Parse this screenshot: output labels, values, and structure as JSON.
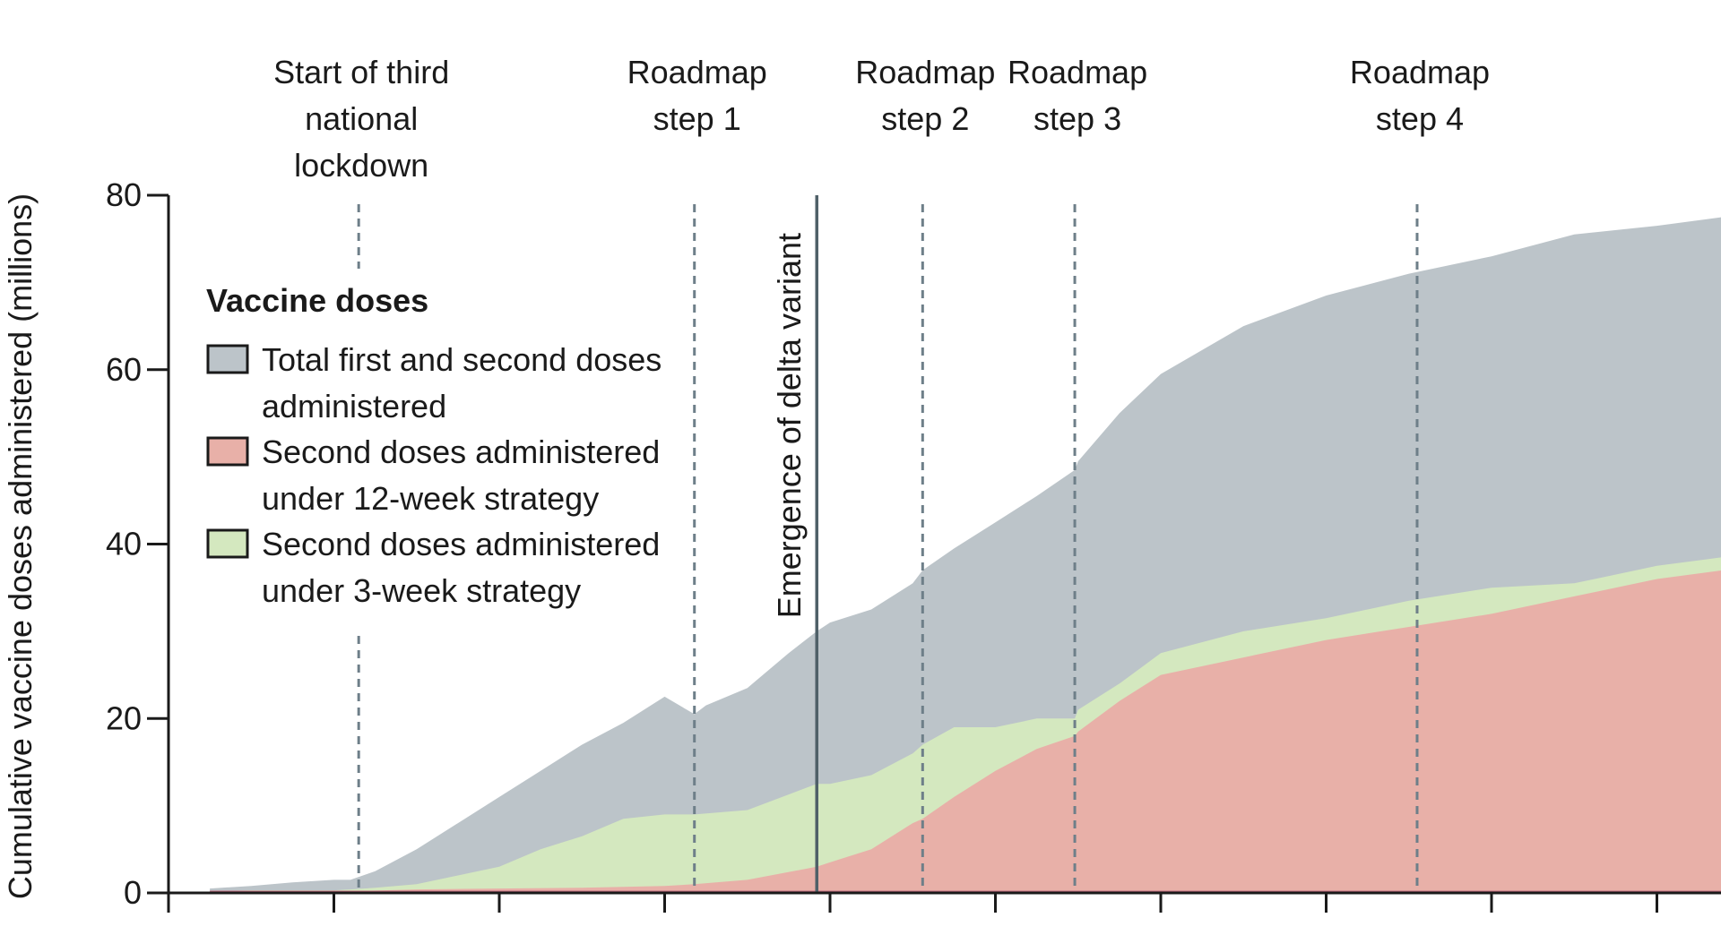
{
  "chart_data": {
    "type": "area",
    "ylabel": "Cumulative vaccine doses administered (millions)",
    "xlabel": "",
    "ylim": [
      0,
      80
    ],
    "y_ticks": [
      0,
      20,
      40,
      60,
      80
    ],
    "x_tick_count": 10,
    "x_domain": [
      0,
      9
    ],
    "stacked": false,
    "legend": {
      "title": "Vaccine doses",
      "placement": "top-left",
      "entries": [
        {
          "lines": [
            "Total first and second doses",
            "administered"
          ],
          "color": "#bcc4c9"
        },
        {
          "lines": [
            "Second doses administered",
            "under 12-week strategy"
          ],
          "color": "#e8b0a8"
        },
        {
          "lines": [
            "Second doses administered",
            "under 3-week strategy"
          ],
          "color": "#d4e8bf"
        }
      ]
    },
    "series": [
      {
        "key": "total",
        "color": "#bcc4c9",
        "x": [
          0.25,
          0.5,
          0.75,
          1.0,
          1.1,
          1.25,
          1.5,
          1.75,
          2.0,
          2.25,
          2.5,
          2.75,
          3.0,
          3.18,
          3.25,
          3.5,
          3.75,
          3.92,
          4.0,
          4.25,
          4.5,
          4.56,
          4.75,
          5.0,
          5.25,
          5.48,
          5.5,
          5.75,
          6.0,
          6.5,
          7.0,
          7.5,
          8.0,
          8.5,
          9.0,
          9.4
        ],
        "values": [
          0.5,
          0.8,
          1.2,
          1.5,
          1.5,
          2.5,
          5,
          8,
          11,
          14,
          17,
          19.5,
          22.5,
          20.5,
          21.5,
          23.5,
          27.5,
          30,
          31,
          32.5,
          35.5,
          37,
          39.5,
          42.5,
          45.5,
          48.5,
          49.5,
          55,
          59.5,
          65,
          68.5,
          71,
          73,
          75.5,
          76.5,
          77.5
        ]
      },
      {
        "key": "three_week",
        "color": "#d4e8bf",
        "x": [
          0.25,
          0.5,
          1.0,
          1.1,
          1.25,
          1.5,
          1.75,
          2.0,
          2.25,
          2.5,
          2.75,
          3.0,
          3.18,
          3.5,
          3.92,
          4.0,
          4.25,
          4.5,
          4.56,
          4.75,
          5.0,
          5.25,
          5.48,
          5.5,
          5.75,
          6.0,
          6.5,
          7.0,
          7.5,
          8.0,
          8.5,
          9.0,
          9.4
        ],
        "values": [
          0.2,
          0.3,
          0.3,
          0.4,
          0.6,
          1.0,
          2.0,
          3.0,
          5.0,
          6.5,
          8.5,
          9.0,
          9.0,
          9.5,
          12.5,
          12.5,
          13.5,
          16.0,
          17.0,
          19.0,
          19.0,
          20.0,
          20.0,
          21.0,
          24.0,
          27.5,
          30.0,
          31.5,
          33.5,
          35.0,
          35.5,
          37.5,
          38.5
        ]
      },
      {
        "key": "twelve_week",
        "color": "#e8b0a8",
        "x": [
          0.25,
          1.0,
          1.1,
          1.5,
          2.0,
          2.5,
          3.0,
          3.18,
          3.5,
          3.92,
          4.0,
          4.25,
          4.5,
          4.56,
          4.75,
          5.0,
          5.25,
          5.48,
          5.5,
          5.75,
          6.0,
          6.5,
          7.0,
          7.5,
          8.0,
          8.5,
          9.0,
          9.4
        ],
        "values": [
          0.1,
          0.2,
          0.2,
          0.4,
          0.5,
          0.6,
          0.8,
          1.0,
          1.5,
          3.0,
          3.5,
          5.0,
          8.0,
          8.5,
          11.0,
          14.0,
          16.5,
          18.0,
          18.5,
          22.0,
          25.0,
          27.0,
          29.0,
          30.5,
          32.0,
          34.0,
          36.0,
          37.0
        ]
      }
    ],
    "events": [
      {
        "x": 1.15,
        "lines": [
          "Start of third",
          "national",
          "lockdown"
        ],
        "style": "dashed"
      },
      {
        "x": 3.18,
        "lines": [
          "Roadmap",
          "step 1"
        ],
        "style": "dashed"
      },
      {
        "x": 4.56,
        "lines": [
          "Roadmap",
          "step 2"
        ],
        "style": "dashed"
      },
      {
        "x": 5.48,
        "lines": [
          "Roadmap",
          "step 3"
        ],
        "style": "dashed"
      },
      {
        "x": 7.55,
        "lines": [
          "Roadmap",
          "step 4"
        ],
        "style": "dashed"
      }
    ],
    "delta_event": {
      "x": 3.92,
      "label": "Emergence of delta variant",
      "style": "solid"
    },
    "colors": {
      "axis": "#1a1a1a",
      "event_line": "#6e7f89",
      "delta_line": "#4f6068"
    }
  }
}
